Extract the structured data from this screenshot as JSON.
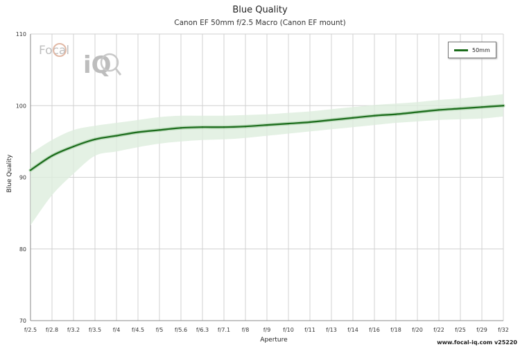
{
  "chart_data": {
    "type": "line",
    "title": "Blue Quality",
    "subtitle": "Canon EF 50mm f/2.5 Macro (Canon EF mount)",
    "xlabel": "Aperture",
    "ylabel": "Blue Quality",
    "ylim": [
      70,
      110
    ],
    "yticks": [
      "70",
      "80",
      "90",
      "100",
      "110"
    ],
    "categories": [
      "f/2.5",
      "f/2.8",
      "f/3.2",
      "f/3.5",
      "f/4",
      "f/4.5",
      "f/5",
      "f/5.6",
      "f/6.3",
      "f/7.1",
      "f/8",
      "f/9",
      "f/10",
      "f/11",
      "f/13",
      "f/14",
      "f/16",
      "f/18",
      "f/20",
      "f/22",
      "f/25",
      "f/29",
      "f/32"
    ],
    "series": [
      {
        "name": "50mm",
        "color": "#1a6b1a",
        "values": [
          91.0,
          93.0,
          94.3,
          95.3,
          95.8,
          96.3,
          96.6,
          96.9,
          97.0,
          97.0,
          97.1,
          97.3,
          97.5,
          97.7,
          98.0,
          98.3,
          98.6,
          98.8,
          99.1,
          99.4,
          99.6,
          99.8,
          100.0
        ],
        "lower": [
          83.3,
          87.5,
          90.5,
          93.0,
          93.6,
          94.2,
          94.7,
          95.0,
          95.2,
          95.3,
          95.5,
          95.8,
          96.1,
          96.4,
          96.7,
          97.0,
          97.3,
          97.6,
          97.8,
          98.0,
          98.1,
          98.2,
          98.5
        ],
        "upper": [
          93.3,
          95.2,
          96.6,
          97.2,
          97.6,
          98.0,
          98.4,
          98.6,
          98.6,
          98.6,
          98.7,
          98.8,
          99.0,
          99.2,
          99.5,
          99.8,
          100.1,
          100.3,
          100.5,
          100.8,
          101.0,
          101.3,
          101.6
        ]
      }
    ],
    "grid": true,
    "legend_position": "top-right",
    "band_color": "#ddeedd"
  },
  "legend": {
    "label": "50mm"
  },
  "footer": "www.focal-iq.com  v25220",
  "logo": {
    "top": "Focal",
    "bottom": "iQ"
  }
}
